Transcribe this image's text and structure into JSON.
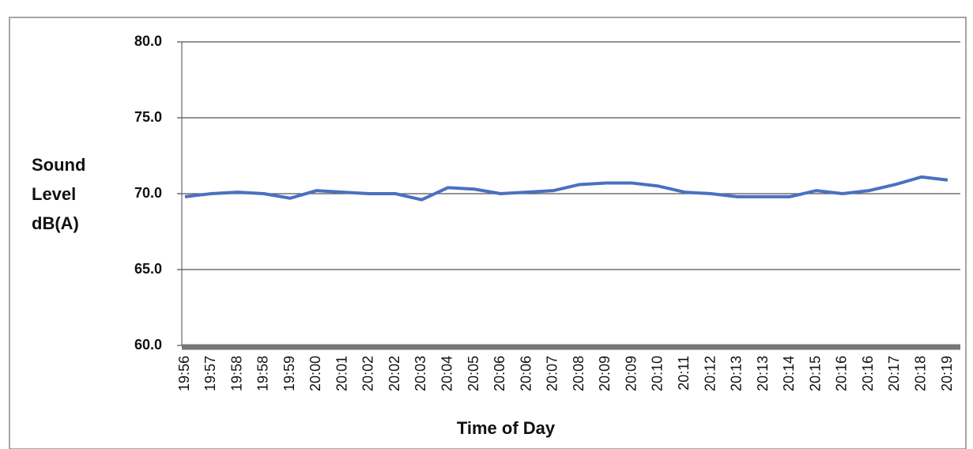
{
  "chart_data": {
    "type": "line",
    "y_label": [
      "Sound",
      "Level",
      "dB(A)"
    ],
    "x_label": "Time of Day",
    "categories": [
      "19:56",
      "19:57",
      "19:58",
      "19:58",
      "19:59",
      "20:00",
      "20:01",
      "20:02",
      "20:02",
      "20:03",
      "20:04",
      "20:05",
      "20:06",
      "20:06",
      "20:07",
      "20:08",
      "20:09",
      "20:09",
      "20:10",
      "20:11",
      "20:12",
      "20:13",
      "20:13",
      "20:14",
      "20:15",
      "20:16",
      "20:16",
      "20:17",
      "20:18",
      "20:19"
    ],
    "values": [
      69.8,
      70.0,
      70.1,
      70.0,
      69.7,
      70.2,
      70.1,
      70.0,
      70.0,
      69.6,
      70.4,
      70.3,
      70.0,
      70.1,
      70.2,
      70.6,
      70.7,
      70.7,
      70.5,
      70.1,
      70.0,
      69.8,
      69.8,
      69.8,
      70.2,
      70.0,
      70.2,
      70.6,
      71.1,
      70.9
    ],
    "color": "#4a70c0",
    "ylim": [
      60,
      80
    ],
    "yticks": [
      {
        "value": 60,
        "label": "60.0"
      },
      {
        "value": 65,
        "label": "65.0"
      },
      {
        "value": 70,
        "label": "70.0"
      },
      {
        "value": 75,
        "label": "75.0"
      },
      {
        "value": 80,
        "label": "80.0"
      }
    ],
    "grid": true
  }
}
